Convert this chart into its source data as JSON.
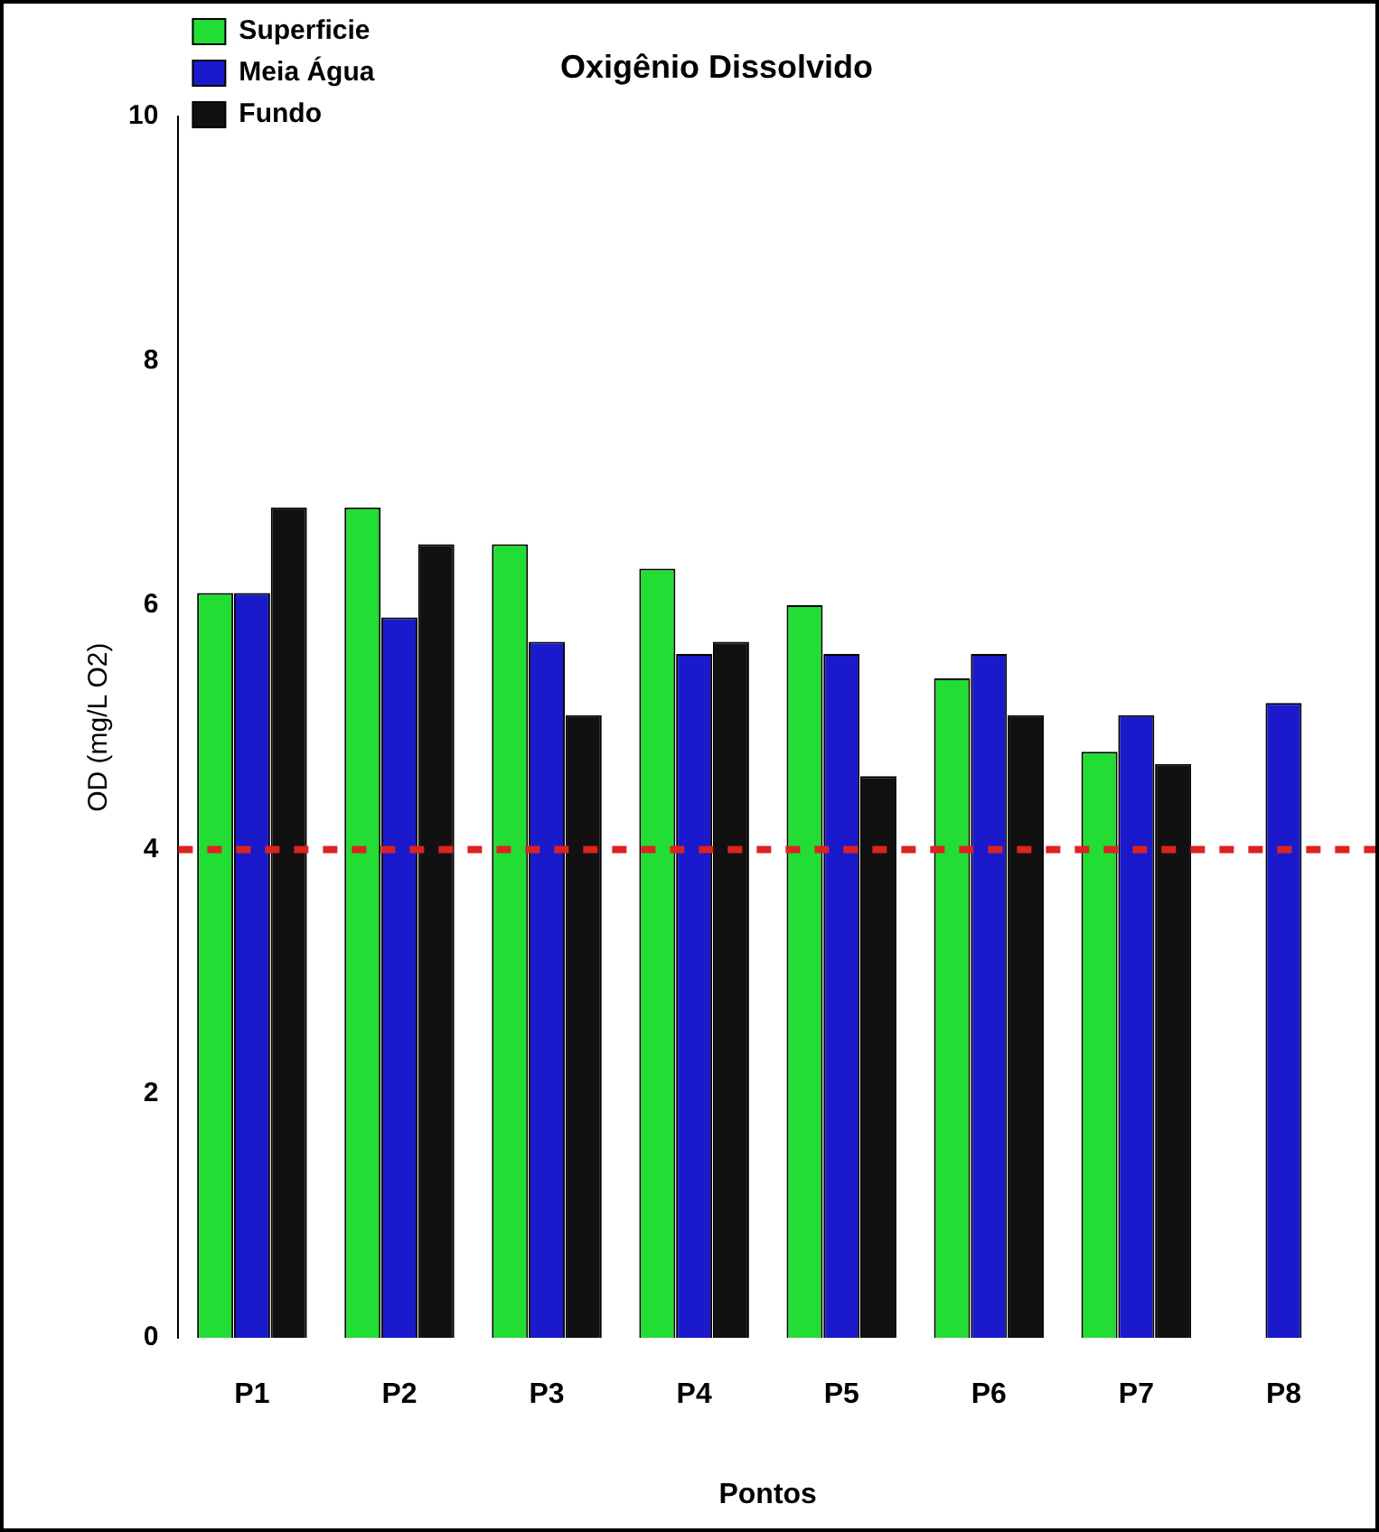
{
  "chart_data": {
    "type": "bar",
    "title": "Oxigênio Dissolvido",
    "xlabel": "Pontos",
    "ylabel": "OD (mg/L O2)",
    "categories": [
      "P1",
      "P2",
      "P3",
      "P4",
      "P5",
      "P6",
      "P7",
      "P8"
    ],
    "series": [
      {
        "name": "Superficie",
        "color": "#22dd33",
        "values": [
          6.1,
          6.8,
          6.5,
          6.3,
          6.0,
          5.4,
          4.8,
          0
        ]
      },
      {
        "name": "Meia Água",
        "color": "#1a1acc",
        "values": [
          6.1,
          5.9,
          5.7,
          5.6,
          5.6,
          5.6,
          5.1,
          5.2
        ]
      },
      {
        "name": "Fundo",
        "color": "#111111",
        "values": [
          6.8,
          6.5,
          5.1,
          5.7,
          4.6,
          5.1,
          4.7,
          null
        ]
      }
    ],
    "ylim": [
      0,
      10
    ],
    "yticks": [
      0,
      2,
      4,
      6,
      8,
      10
    ],
    "grid": false,
    "legend": "top left",
    "ref_lines": [
      {
        "axis": "y",
        "value": 4,
        "color": "#dd2222",
        "line_style": "dashed"
      }
    ]
  }
}
